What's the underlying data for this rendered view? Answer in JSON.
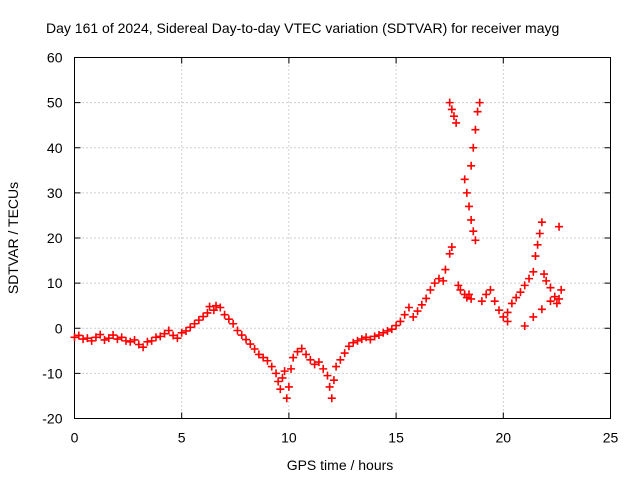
{
  "chart_data": {
    "type": "scatter",
    "title": "Day 161 of 2024, Sidereal Day-to-day VTEC variation (SDTVAR) for receiver mayg",
    "xlabel": "GPS time / hours",
    "ylabel": "SDTVAR / TECUs",
    "xlim": [
      0,
      25
    ],
    "ylim": [
      -20,
      60
    ],
    "xticks": [
      0,
      5,
      10,
      15,
      20,
      25
    ],
    "yticks": [
      -20,
      -10,
      0,
      10,
      20,
      30,
      40,
      50,
      60
    ],
    "grid": true,
    "marker": "+",
    "colors": {
      "points": "#ff0000",
      "axes": "#000000",
      "grid": "#a0a0a0"
    },
    "series": [
      {
        "name": "SDTVAR",
        "points": [
          [
            0.0,
            -2.0
          ],
          [
            0.2,
            -1.6
          ],
          [
            0.4,
            -2.4
          ],
          [
            0.6,
            -2.2
          ],
          [
            0.8,
            -2.8
          ],
          [
            1.0,
            -2.0
          ],
          [
            1.2,
            -1.4
          ],
          [
            1.4,
            -2.6
          ],
          [
            1.6,
            -2.2
          ],
          [
            1.8,
            -1.5
          ],
          [
            2.0,
            -2.4
          ],
          [
            2.2,
            -2.0
          ],
          [
            2.4,
            -2.8
          ],
          [
            2.6,
            -3.0
          ],
          [
            2.8,
            -2.6
          ],
          [
            3.0,
            -3.6
          ],
          [
            3.2,
            -4.2
          ],
          [
            3.4,
            -3.0
          ],
          [
            3.6,
            -2.8
          ],
          [
            3.8,
            -2.0
          ],
          [
            4.0,
            -1.8
          ],
          [
            4.2,
            -1.2
          ],
          [
            4.4,
            -0.5
          ],
          [
            4.6,
            -1.6
          ],
          [
            4.8,
            -2.2
          ],
          [
            5.0,
            -1.0
          ],
          [
            5.2,
            -0.6
          ],
          [
            5.4,
            0.2
          ],
          [
            5.6,
            1.0
          ],
          [
            5.8,
            1.8
          ],
          [
            6.0,
            2.6
          ],
          [
            6.2,
            3.4
          ],
          [
            6.3,
            4.8
          ],
          [
            6.5,
            4.0
          ],
          [
            6.6,
            5.0
          ],
          [
            6.8,
            4.6
          ],
          [
            7.0,
            3.0
          ],
          [
            7.2,
            2.0
          ],
          [
            7.4,
            1.0
          ],
          [
            7.6,
            -0.5
          ],
          [
            7.8,
            -1.5
          ],
          [
            8.0,
            -2.5
          ],
          [
            8.2,
            -3.5
          ],
          [
            8.4,
            -4.6
          ],
          [
            8.6,
            -5.8
          ],
          [
            8.8,
            -6.5
          ],
          [
            9.0,
            -7.2
          ],
          [
            9.2,
            -8.5
          ],
          [
            9.4,
            -10.0
          ],
          [
            9.5,
            -11.8
          ],
          [
            9.6,
            -13.5
          ],
          [
            9.7,
            -11.0
          ],
          [
            9.8,
            -9.5
          ],
          [
            9.9,
            -15.5
          ],
          [
            10.0,
            -13.0
          ],
          [
            10.1,
            -9.0
          ],
          [
            10.2,
            -6.5
          ],
          [
            10.4,
            -5.2
          ],
          [
            10.6,
            -4.5
          ],
          [
            10.8,
            -5.8
          ],
          [
            11.0,
            -7.0
          ],
          [
            11.2,
            -8.0
          ],
          [
            11.4,
            -7.5
          ],
          [
            11.6,
            -9.0
          ],
          [
            11.8,
            -10.5
          ],
          [
            11.9,
            -13.0
          ],
          [
            12.0,
            -15.5
          ],
          [
            12.1,
            -11.5
          ],
          [
            12.2,
            -8.5
          ],
          [
            12.4,
            -7.0
          ],
          [
            12.6,
            -5.5
          ],
          [
            12.8,
            -4.0
          ],
          [
            13.0,
            -3.2
          ],
          [
            13.2,
            -2.8
          ],
          [
            13.4,
            -2.4
          ],
          [
            13.6,
            -2.0
          ],
          [
            13.8,
            -2.5
          ],
          [
            14.0,
            -1.8
          ],
          [
            14.2,
            -1.5
          ],
          [
            14.4,
            -1.0
          ],
          [
            14.6,
            -0.6
          ],
          [
            14.8,
            -0.2
          ],
          [
            15.0,
            0.6
          ],
          [
            15.2,
            1.5
          ],
          [
            15.4,
            3.0
          ],
          [
            15.6,
            4.6
          ],
          [
            15.8,
            2.5
          ],
          [
            16.0,
            3.8
          ],
          [
            16.2,
            5.2
          ],
          [
            16.4,
            6.6
          ],
          [
            16.6,
            8.5
          ],
          [
            16.8,
            10.0
          ],
          [
            17.0,
            11.0
          ],
          [
            17.2,
            10.5
          ],
          [
            17.3,
            13.0
          ],
          [
            17.5,
            16.5
          ],
          [
            17.6,
            18.0
          ],
          [
            17.5,
            50.0
          ],
          [
            17.6,
            48.5
          ],
          [
            17.7,
            47.0
          ],
          [
            17.8,
            45.5
          ],
          [
            17.9,
            9.5
          ],
          [
            18.0,
            8.5
          ],
          [
            18.2,
            7.5
          ],
          [
            18.3,
            6.8
          ],
          [
            18.4,
            7.5
          ],
          [
            18.5,
            6.5
          ],
          [
            18.2,
            33.0
          ],
          [
            18.3,
            30.0
          ],
          [
            18.4,
            27.0
          ],
          [
            18.5,
            24.0
          ],
          [
            18.6,
            21.5
          ],
          [
            18.7,
            19.5
          ],
          [
            18.5,
            36.0
          ],
          [
            18.6,
            40.0
          ],
          [
            18.7,
            44.0
          ],
          [
            18.8,
            48.0
          ],
          [
            18.9,
            50.0
          ],
          [
            19.0,
            6.0
          ],
          [
            19.2,
            7.5
          ],
          [
            19.4,
            8.5
          ],
          [
            19.6,
            6.0
          ],
          [
            19.8,
            4.0
          ],
          [
            20.0,
            2.5
          ],
          [
            20.2,
            3.5
          ],
          [
            20.4,
            5.5
          ],
          [
            20.6,
            6.8
          ],
          [
            20.8,
            8.0
          ],
          [
            21.0,
            9.5
          ],
          [
            21.2,
            11.0
          ],
          [
            21.4,
            12.5
          ],
          [
            21.5,
            16.0
          ],
          [
            21.6,
            18.5
          ],
          [
            21.7,
            21.0
          ],
          [
            21.8,
            23.5
          ],
          [
            21.9,
            12.0
          ],
          [
            22.0,
            10.5
          ],
          [
            22.2,
            9.0
          ],
          [
            22.4,
            7.0
          ],
          [
            22.5,
            5.5
          ],
          [
            22.6,
            22.5
          ],
          [
            22.7,
            8.5
          ],
          [
            21.0,
            0.5
          ],
          [
            21.4,
            2.5
          ],
          [
            21.8,
            4.2
          ],
          [
            22.2,
            6.0
          ],
          [
            20.2,
            1.5
          ],
          [
            22.6,
            6.5
          ]
        ]
      }
    ]
  }
}
